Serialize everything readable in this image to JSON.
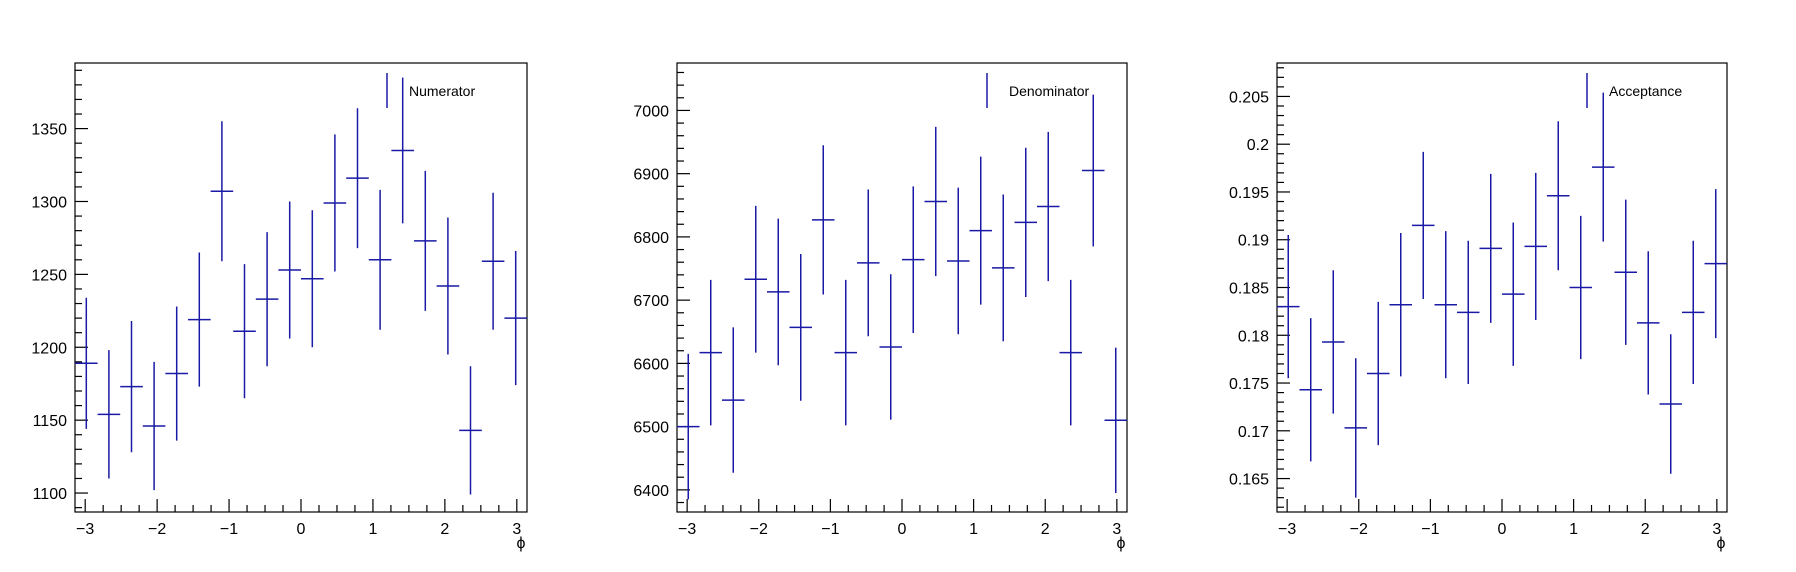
{
  "colors": {
    "series": "#1a1aa6",
    "axis": "#000000",
    "background": "#ffffff"
  },
  "chart_data": [
    {
      "type": "scatter",
      "title": "",
      "legend": {
        "label": "Numerator",
        "placement": "top-right"
      },
      "xlabel": "ϕ",
      "ylabel": "",
      "xlim": [
        -3.1416,
        3.1416
      ],
      "ylim": [
        1087,
        1395
      ],
      "xticks": [
        -3,
        -2,
        -1,
        0,
        1,
        2,
        3
      ],
      "yticks": [
        1100,
        1150,
        1200,
        1250,
        1300,
        1350
      ],
      "x": [
        -2.9845,
        -2.6704,
        -2.3562,
        -2.042,
        -1.7279,
        -1.4137,
        -1.0996,
        -0.7854,
        -0.4712,
        -0.1571,
        0.1571,
        0.4712,
        0.7854,
        1.0996,
        1.4137,
        1.7279,
        2.042,
        2.3562,
        2.6704,
        2.9845
      ],
      "y": [
        1189,
        1154,
        1173,
        1146,
        1182,
        1219,
        1307,
        1211,
        1233,
        1253,
        1247,
        1299,
        1316,
        1260,
        1335,
        1273,
        1242,
        1143,
        1259,
        1220
      ],
      "yerr": [
        45,
        44,
        45,
        44,
        46,
        46,
        48,
        46,
        46,
        47,
        47,
        47,
        48,
        48,
        50,
        48,
        47,
        44,
        47,
        46
      ]
    },
    {
      "type": "scatter",
      "title": "",
      "legend": {
        "label": "Denominator",
        "placement": "top-right"
      },
      "xlabel": "ϕ",
      "ylabel": "",
      "xlim": [
        -3.1416,
        3.1416
      ],
      "ylim": [
        6365,
        7075
      ],
      "xticks": [
        -3,
        -2,
        -1,
        0,
        1,
        2,
        3
      ],
      "yticks": [
        6400,
        6500,
        6600,
        6700,
        6800,
        6900,
        7000
      ],
      "x": [
        -2.9845,
        -2.6704,
        -2.3562,
        -2.042,
        -1.7279,
        -1.4137,
        -1.0996,
        -0.7854,
        -0.4712,
        -0.1571,
        0.1571,
        0.4712,
        0.7854,
        1.0996,
        1.4137,
        1.7279,
        2.042,
        2.3562,
        2.6704,
        2.9845
      ],
      "y": [
        6500,
        6617,
        6542,
        6733,
        6713,
        6657,
        6827,
        6617,
        6759,
        6626,
        6764,
        6856,
        6762,
        6810,
        6751,
        6823,
        6848,
        6617,
        6905,
        6510
      ],
      "yerr": [
        115,
        115,
        115,
        116,
        116,
        116,
        118,
        115,
        116,
        115,
        116,
        118,
        116,
        117,
        116,
        118,
        118,
        115,
        120,
        115
      ]
    },
    {
      "type": "scatter",
      "title": "",
      "legend": {
        "label": "Acceptance",
        "placement": "top-right"
      },
      "xlabel": "ϕ",
      "ylabel": "",
      "xlim": [
        -3.1416,
        3.1416
      ],
      "ylim": [
        0.1615,
        0.2085
      ],
      "xticks": [
        -3,
        -2,
        -1,
        0,
        1,
        2,
        3
      ],
      "yticks": [
        0.165,
        0.17,
        0.175,
        0.18,
        0.185,
        0.19,
        0.195,
        0.2,
        0.205
      ],
      "ytick_labels": [
        "0.165",
        "0.17",
        "0.175",
        "0.18",
        "0.185",
        "0.19",
        "0.195",
        "0.2",
        "0.205"
      ],
      "x": [
        -2.9845,
        -2.6704,
        -2.3562,
        -2.042,
        -1.7279,
        -1.4137,
        -1.0996,
        -0.7854,
        -0.4712,
        -0.1571,
        0.1571,
        0.4712,
        0.7854,
        1.0996,
        1.4137,
        1.7279,
        2.042,
        2.3562,
        2.6704,
        2.9845
      ],
      "y": [
        0.183,
        0.1743,
        0.1793,
        0.1703,
        0.176,
        0.1832,
        0.1915,
        0.1832,
        0.1824,
        0.1891,
        0.1843,
        0.1893,
        0.1946,
        0.185,
        0.1976,
        0.1866,
        0.1813,
        0.1728,
        0.1824,
        0.1875
      ],
      "yerr": [
        0.0075,
        0.0075,
        0.0075,
        0.0073,
        0.0075,
        0.0075,
        0.0077,
        0.0077,
        0.0075,
        0.0078,
        0.0075,
        0.0077,
        0.0078,
        0.0075,
        0.0078,
        0.0076,
        0.0075,
        0.0073,
        0.0075,
        0.0078
      ]
    }
  ]
}
